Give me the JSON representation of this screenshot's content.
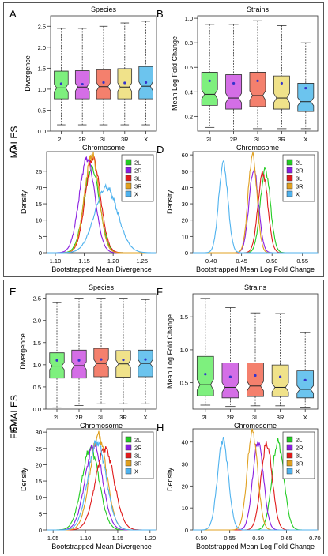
{
  "sections": [
    {
      "label": "MALES"
    },
    {
      "label": "FEMALES"
    }
  ],
  "colors": {
    "2L": "#7ef07e",
    "2R": "#d46ee6",
    "3L": "#f4806d",
    "3R": "#f0e28a",
    "X": "#6cc4ee",
    "line_2L": "#22cc22",
    "line_2R": "#8a1ee0",
    "line_3L": "#e01a1a",
    "line_3R": "#e0a020",
    "line_X": "#4fb2ee",
    "mean_dot": "#3333cc"
  },
  "chart_data": [
    {
      "id": "A",
      "type": "box",
      "panel_label": "A",
      "title": "Species",
      "xlabel": "Chromosome",
      "ylabel": "Divergence",
      "ylim": [
        0,
        2.75
      ],
      "yticks": [
        0.0,
        0.5,
        1.0,
        1.5,
        2.0,
        2.5
      ],
      "ytick_labels": [
        "0.0",
        "0.5",
        "1.0",
        "1.5",
        "2.0",
        "2.5"
      ],
      "notched": true,
      "boxes": [
        {
          "label": "2L",
          "color": "2L",
          "whisker_low": 0.15,
          "q1": 0.77,
          "median": 1.03,
          "q3": 1.43,
          "whisker_high": 2.45,
          "mean": 1.13
        },
        {
          "label": "2R",
          "color": "2R",
          "whisker_low": 0.15,
          "q1": 0.77,
          "median": 1.05,
          "q3": 1.44,
          "whisker_high": 2.45,
          "mean": 1.12
        },
        {
          "label": "3L",
          "color": "3L",
          "whisker_low": 0.15,
          "q1": 0.77,
          "median": 1.06,
          "q3": 1.46,
          "whisker_high": 2.5,
          "mean": 1.16
        },
        {
          "label": "3R",
          "color": "3R",
          "whisker_low": 0.15,
          "q1": 0.77,
          "median": 1.05,
          "q3": 1.49,
          "whisker_high": 2.58,
          "mean": 1.15
        },
        {
          "label": "X",
          "color": "X",
          "whisker_low": 0.15,
          "q1": 0.77,
          "median": 1.07,
          "q3": 1.54,
          "whisker_high": 2.62,
          "mean": 1.16
        }
      ]
    },
    {
      "id": "B",
      "type": "box",
      "panel_label": "B",
      "title": "Strains",
      "xlabel": "Chromosome",
      "ylabel": "Mean Log Fold Change",
      "ylim": [
        0.08,
        1.02
      ],
      "yticks": [
        0.2,
        0.4,
        0.6,
        0.8,
        1.0
      ],
      "ytick_labels": [
        "0.2",
        "0.4",
        "0.6",
        "0.8",
        "1.0"
      ],
      "notched": true,
      "boxes": [
        {
          "label": "2L",
          "color": "2L",
          "whisker_low": 0.11,
          "q1": 0.29,
          "median": 0.38,
          "q3": 0.56,
          "whisker_high": 0.95,
          "mean": 0.49
        },
        {
          "label": "2R",
          "color": "2R",
          "whisker_low": 0.09,
          "q1": 0.26,
          "median": 0.35,
          "q3": 0.54,
          "whisker_high": 0.95,
          "mean": 0.47
        },
        {
          "label": "3L",
          "color": "3L",
          "whisker_low": 0.1,
          "q1": 0.28,
          "median": 0.37,
          "q3": 0.56,
          "whisker_high": 0.98,
          "mean": 0.49
        },
        {
          "label": "3R",
          "color": "3R",
          "whisker_low": 0.1,
          "q1": 0.26,
          "median": 0.35,
          "q3": 0.53,
          "whisker_high": 0.94,
          "mean": 0.47
        },
        {
          "label": "X",
          "color": "X",
          "whisker_low": 0.1,
          "q1": 0.24,
          "median": 0.32,
          "q3": 0.47,
          "whisker_high": 0.8,
          "mean": 0.43
        }
      ]
    },
    {
      "id": "C",
      "type": "line",
      "panel_label": "C",
      "xlabel": "Bootstrapped Mean Divergence",
      "ylabel": "Density",
      "xlim": [
        1.085,
        1.275
      ],
      "ylim": [
        0,
        31
      ],
      "xticks": [
        1.1,
        1.15,
        1.2,
        1.25
      ],
      "xtick_labels": [
        "1.10",
        "1.15",
        "1.20",
        "1.25"
      ],
      "yticks": [
        0,
        5,
        10,
        15,
        20,
        25
      ],
      "ytick_labels": [
        "0",
        "5",
        "10",
        "15",
        "20",
        "25"
      ],
      "legend": "top-right",
      "series": [
        {
          "name": "2L",
          "color": "line_2L",
          "mean": 1.163,
          "sd": 0.0135,
          "peak": 26
        },
        {
          "name": "2R",
          "color": "line_2R",
          "mean": 1.155,
          "sd": 0.0135,
          "peak": 29
        },
        {
          "name": "3L",
          "color": "line_3L",
          "mean": 1.165,
          "sd": 0.013,
          "peak": 29
        },
        {
          "name": "3R",
          "color": "line_3R",
          "mean": 1.163,
          "sd": 0.0125,
          "peak": 30
        },
        {
          "name": "X",
          "color": "line_X",
          "mean": 1.188,
          "sd": 0.02,
          "peak": 20
        }
      ]
    },
    {
      "id": "D",
      "type": "line",
      "panel_label": "D",
      "xlabel": "Bootstrapped Mean Log Fold Change",
      "ylabel": "Density",
      "xlim": [
        0.37,
        0.575
      ],
      "ylim": [
        0,
        62
      ],
      "xticks": [
        0.4,
        0.45,
        0.5,
        0.55
      ],
      "xtick_labels": [
        "0.40",
        "0.45",
        "0.50",
        "0.55"
      ],
      "yticks": [
        0,
        10,
        20,
        30,
        40,
        50,
        60
      ],
      "ytick_labels": [
        "0",
        "10",
        "20",
        "30",
        "40",
        "50",
        "60"
      ],
      "legend": "top-right",
      "series": [
        {
          "name": "2L",
          "color": "line_2L",
          "mean": 0.489,
          "sd": 0.0082,
          "peak": 51
        },
        {
          "name": "2R",
          "color": "line_2R",
          "mean": 0.47,
          "sd": 0.0078,
          "peak": 51
        },
        {
          "name": "3L",
          "color": "line_3L",
          "mean": 0.485,
          "sd": 0.008,
          "peak": 49
        },
        {
          "name": "3R",
          "color": "line_3R",
          "mean": 0.468,
          "sd": 0.0072,
          "peak": 60
        },
        {
          "name": "X",
          "color": "line_X",
          "mean": 0.42,
          "sd": 0.0075,
          "peak": 55
        }
      ]
    },
    {
      "id": "E",
      "type": "box",
      "panel_label": "E",
      "title": "Species",
      "xlabel": "Chromosome",
      "ylabel": "Divergence",
      "ylim": [
        0,
        2.6
      ],
      "yticks": [
        0.0,
        0.5,
        1.0,
        1.5,
        2.0,
        2.5
      ],
      "ytick_labels": [
        "0.0",
        "0.5",
        "1.0",
        "1.5",
        "2.0",
        "2.5"
      ],
      "notched": true,
      "boxes": [
        {
          "label": "2L",
          "color": "2L",
          "whisker_low": 0.03,
          "q1": 0.7,
          "median": 0.97,
          "q3": 1.27,
          "whisker_high": 2.4,
          "mean": 1.1
        },
        {
          "label": "2R",
          "color": "2R",
          "whisker_low": 0.08,
          "q1": 0.7,
          "median": 0.98,
          "q3": 1.33,
          "whisker_high": 2.5,
          "mean": 1.1
        },
        {
          "label": "3L",
          "color": "3L",
          "whisker_low": 0.12,
          "q1": 0.73,
          "median": 1.03,
          "q3": 1.37,
          "whisker_high": 2.5,
          "mean": 1.12
        },
        {
          "label": "3R",
          "color": "3R",
          "whisker_low": 0.12,
          "q1": 0.72,
          "median": 1.02,
          "q3": 1.32,
          "whisker_high": 2.5,
          "mean": 1.11
        },
        {
          "label": "X",
          "color": "X",
          "whisker_low": 0.12,
          "q1": 0.73,
          "median": 1.03,
          "q3": 1.33,
          "whisker_high": 2.47,
          "mean": 1.12
        }
      ]
    },
    {
      "id": "F",
      "type": "box",
      "panel_label": "F",
      "title": "Strains",
      "xlabel": "Chromosome",
      "ylabel": "Mean Log Fold Change",
      "ylim": [
        0.1,
        1.85
      ],
      "yticks": [
        0.5,
        1.0,
        1.5
      ],
      "ytick_labels": [
        "0.5",
        "1.0",
        "1.5"
      ],
      "notched": true,
      "boxes": [
        {
          "label": "2L",
          "color": "2L",
          "whisker_low": 0.16,
          "q1": 0.3,
          "median": 0.47,
          "q3": 0.9,
          "whisker_high": 1.78,
          "mean": 0.63
        },
        {
          "label": "2R",
          "color": "2R",
          "whisker_low": 0.14,
          "q1": 0.27,
          "median": 0.43,
          "q3": 0.8,
          "whisker_high": 1.64,
          "mean": 0.59
        },
        {
          "label": "3L",
          "color": "3L",
          "whisker_low": 0.15,
          "q1": 0.29,
          "median": 0.45,
          "q3": 0.8,
          "whisker_high": 1.56,
          "mean": 0.61
        },
        {
          "label": "3R",
          "color": "3R",
          "whisker_low": 0.15,
          "q1": 0.29,
          "median": 0.43,
          "q3": 0.77,
          "whisker_high": 1.55,
          "mean": 0.59
        },
        {
          "label": "X",
          "color": "X",
          "whisker_low": 0.13,
          "q1": 0.27,
          "median": 0.4,
          "q3": 0.68,
          "whisker_high": 1.26,
          "mean": 0.54
        }
      ]
    },
    {
      "id": "G",
      "type": "line",
      "panel_label": "G",
      "xlabel": "Bootstrapped Mean Divergence",
      "ylabel": "Density",
      "xlim": [
        1.04,
        1.21
      ],
      "ylim": [
        0,
        31
      ],
      "xticks": [
        1.05,
        1.1,
        1.15,
        1.2
      ],
      "xtick_labels": [
        "1.05",
        "1.10",
        "1.15",
        "1.20"
      ],
      "yticks": [
        0,
        5,
        10,
        15,
        20,
        25,
        30
      ],
      "ytick_labels": [
        "0",
        "5",
        "10",
        "15",
        "20",
        "25",
        "30"
      ],
      "legend": "top-right",
      "series": [
        {
          "name": "2L",
          "color": "line_2L",
          "mean": 1.108,
          "sd": 0.0135,
          "peak": 25
        },
        {
          "name": "2R",
          "color": "line_2R",
          "mean": 1.113,
          "sd": 0.0135,
          "peak": 26
        },
        {
          "name": "3L",
          "color": "line_3L",
          "mean": 1.13,
          "sd": 0.0145,
          "peak": 25
        },
        {
          "name": "3R",
          "color": "line_3R",
          "mean": 1.12,
          "sd": 0.013,
          "peak": 29
        },
        {
          "name": "X",
          "color": "line_X",
          "mean": 1.118,
          "sd": 0.014,
          "peak": 27
        }
      ]
    },
    {
      "id": "H",
      "type": "line",
      "panel_label": "H",
      "xlabel": "Bootstrapped Mean Log Fold Change",
      "ylabel": "Density",
      "xlim": [
        0.485,
        0.705
      ],
      "ylim": [
        0,
        46
      ],
      "xticks": [
        0.5,
        0.55,
        0.6,
        0.65,
        0.7
      ],
      "xtick_labels": [
        "0.50",
        "0.55",
        "0.60",
        "0.65",
        "0.70"
      ],
      "yticks": [
        0,
        10,
        20,
        30,
        40
      ],
      "ytick_labels": [
        "0",
        "10",
        "20",
        "30",
        "40"
      ],
      "legend": "top-right",
      "series": [
        {
          "name": "2L",
          "color": "line_2L",
          "mean": 0.635,
          "sd": 0.0105,
          "peak": 40
        },
        {
          "name": "2R",
          "color": "line_2R",
          "mean": 0.6,
          "sd": 0.0095,
          "peak": 40
        },
        {
          "name": "3L",
          "color": "line_3L",
          "mean": 0.615,
          "sd": 0.01,
          "peak": 39
        },
        {
          "name": "3R",
          "color": "line_3R",
          "mean": 0.59,
          "sd": 0.0092,
          "peak": 45
        },
        {
          "name": "X",
          "color": "line_X",
          "mean": 0.538,
          "sd": 0.0095,
          "peak": 41
        }
      ]
    }
  ]
}
